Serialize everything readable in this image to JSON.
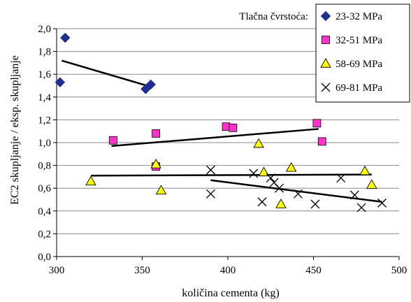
{
  "chart_data": {
    "type": "scatter",
    "xlabel": "količina cementa (kg)",
    "ylabel": "EC2 skupljanje / eksp. skupljanje",
    "xlim": [
      300,
      500
    ],
    "ylim": [
      0,
      2.0
    ],
    "x_ticks": [
      300,
      350,
      400,
      450,
      500
    ],
    "y_ticks": [
      0.0,
      0.2,
      0.4,
      0.6,
      0.8,
      1.0,
      1.2,
      1.4,
      1.6,
      1.8,
      2.0
    ],
    "x_tick_labels": [
      "300",
      "350",
      "400",
      "450",
      "500"
    ],
    "y_tick_labels": [
      "0,0",
      "0,2",
      "0,4",
      "0,6",
      "0,8",
      "1,0",
      "1,2",
      "1,4",
      "1,6",
      "1,8",
      "2,0"
    ],
    "grid": "horizontal",
    "legend_title": "Tlačna čvrstoća:",
    "legend_placement": "top-right",
    "series": [
      {
        "name": "23-32 MPa",
        "marker": "diamond",
        "color": "#1f2f8f",
        "points": [
          [
            302,
            1.53
          ],
          [
            305,
            1.92
          ],
          [
            352,
            1.47
          ],
          [
            355,
            1.51
          ]
        ],
        "trend": [
          [
            303,
            1.72
          ],
          [
            355,
            1.49
          ]
        ]
      },
      {
        "name": "32-51 MPa",
        "marker": "square",
        "color": "#ff33cc",
        "points": [
          [
            333,
            1.02
          ],
          [
            358,
            1.08
          ],
          [
            358,
            0.79
          ],
          [
            399,
            1.14
          ],
          [
            403,
            1.13
          ],
          [
            452,
            1.17
          ],
          [
            455,
            1.01
          ]
        ],
        "trend": [
          [
            332,
            0.97
          ],
          [
            453,
            1.12
          ]
        ]
      },
      {
        "name": "58-69 MPa",
        "marker": "triangle",
        "color": "#ffff00",
        "points": [
          [
            320,
            0.66
          ],
          [
            358,
            0.81
          ],
          [
            361,
            0.58
          ],
          [
            418,
            0.99
          ],
          [
            421,
            0.74
          ],
          [
            431,
            0.46
          ],
          [
            437,
            0.78
          ],
          [
            480,
            0.75
          ],
          [
            484,
            0.63
          ]
        ],
        "trend": [
          [
            320,
            0.71
          ],
          [
            484,
            0.72
          ]
        ]
      },
      {
        "name": "69-81 MPa",
        "marker": "x",
        "color": "#000000",
        "points": [
          [
            390,
            0.76
          ],
          [
            390,
            0.55
          ],
          [
            415,
            0.73
          ],
          [
            420,
            0.48
          ],
          [
            425,
            0.69
          ],
          [
            427,
            0.65
          ],
          [
            430,
            0.6
          ],
          [
            441,
            0.55
          ],
          [
            451,
            0.46
          ],
          [
            466,
            0.69
          ],
          [
            474,
            0.54
          ],
          [
            478,
            0.43
          ],
          [
            490,
            0.47
          ]
        ],
        "trend": [
          [
            390,
            0.67
          ],
          [
            490,
            0.48
          ]
        ]
      }
    ]
  }
}
